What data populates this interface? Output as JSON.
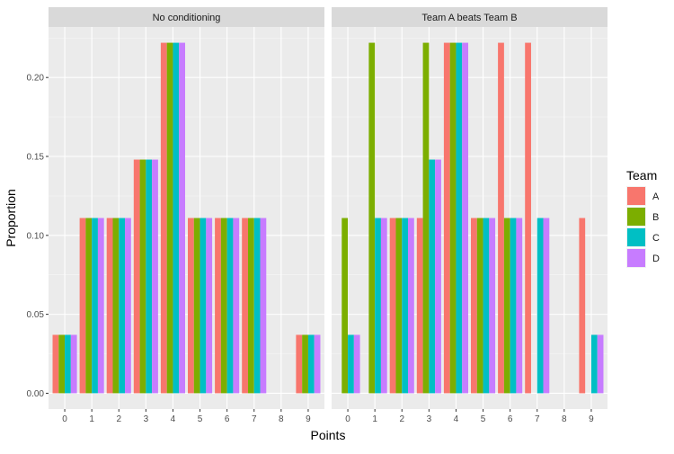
{
  "chart_data": {
    "type": "bar",
    "xlabel": "Points",
    "ylabel": "Proportion",
    "categories": [
      "0",
      "1",
      "2",
      "3",
      "4",
      "5",
      "6",
      "7",
      "8",
      "9"
    ],
    "ylim": [
      -0.01,
      0.232
    ],
    "y_ticks": [
      0.0,
      0.05,
      0.1,
      0.15,
      0.2
    ],
    "y_tick_labels": [
      "0.00",
      "0.05",
      "0.10",
      "0.15",
      "0.20"
    ],
    "grid": true,
    "legend": {
      "title": "Team",
      "position": "right",
      "entries": [
        {
          "name": "A",
          "color": "#F8766D"
        },
        {
          "name": "B",
          "color": "#7CAE00"
        },
        {
          "name": "C",
          "color": "#00BFC4"
        },
        {
          "name": "D",
          "color": "#C77CFF"
        }
      ]
    },
    "panels": [
      {
        "title": "No conditioning",
        "series": [
          {
            "name": "A",
            "values": [
              0.037,
              0.111,
              0.111,
              0.148,
              0.222,
              0.111,
              0.111,
              0.111,
              0,
              0.037
            ]
          },
          {
            "name": "B",
            "values": [
              0.037,
              0.111,
              0.111,
              0.148,
              0.222,
              0.111,
              0.111,
              0.111,
              0,
              0.037
            ]
          },
          {
            "name": "C",
            "values": [
              0.037,
              0.111,
              0.111,
              0.148,
              0.222,
              0.111,
              0.111,
              0.111,
              0,
              0.037
            ]
          },
          {
            "name": "D",
            "values": [
              0.037,
              0.111,
              0.111,
              0.148,
              0.222,
              0.111,
              0.111,
              0.111,
              0,
              0.037
            ]
          }
        ]
      },
      {
        "title": "Team A beats Team B",
        "series": [
          {
            "name": "A",
            "values": [
              0,
              0,
              0.111,
              0.111,
              0.222,
              0.111,
              0.222,
              0.222,
              0,
              0.111
            ]
          },
          {
            "name": "B",
            "values": [
              0.111,
              0.222,
              0.111,
              0.222,
              0.222,
              0.111,
              0.111,
              0,
              0,
              0
            ]
          },
          {
            "name": "C",
            "values": [
              0.037,
              0.111,
              0.111,
              0.148,
              0.222,
              0.111,
              0.111,
              0.111,
              0,
              0.037
            ]
          },
          {
            "name": "D",
            "values": [
              0.037,
              0.111,
              0.111,
              0.148,
              0.222,
              0.111,
              0.111,
              0.111,
              0,
              0.037
            ]
          }
        ]
      }
    ]
  }
}
